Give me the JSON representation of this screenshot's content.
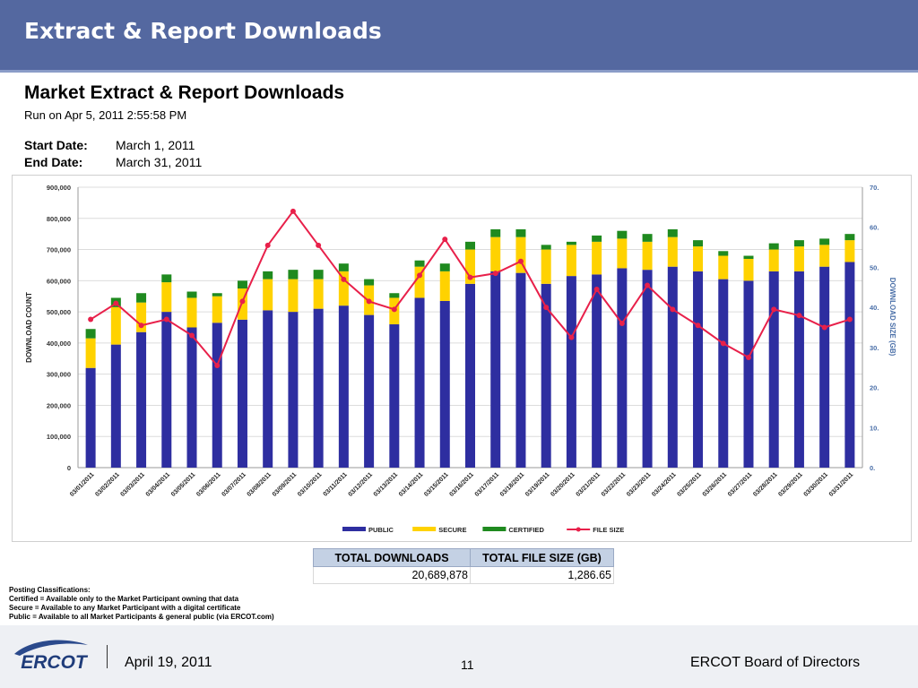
{
  "header": {
    "title": "Extract & Report Downloads"
  },
  "report": {
    "title": "Market Extract & Report Downloads",
    "run_on": "Run on Apr 5, 2011  2:55:58 PM",
    "start_label": "Start Date:",
    "start_value": "March 1, 2011",
    "end_label": "End Date:",
    "end_value": "March 31, 2011"
  },
  "chart_data": {
    "type": "bar",
    "stacked": true,
    "categories": [
      "03/01/2011",
      "03/02/2011",
      "03/03/2011",
      "03/04/2011",
      "03/05/2011",
      "03/06/2011",
      "03/07/2011",
      "03/08/2011",
      "03/09/2011",
      "03/10/2011",
      "03/11/2011",
      "03/12/2011",
      "03/13/2011",
      "03/14/2011",
      "03/15/2011",
      "03/16/2011",
      "03/17/2011",
      "03/18/2011",
      "03/19/2011",
      "03/20/2011",
      "03/21/2011",
      "03/22/2011",
      "03/23/2011",
      "03/24/2011",
      "03/25/2011",
      "03/26/2011",
      "03/27/2011",
      "03/28/2011",
      "03/29/2011",
      "03/30/2011",
      "03/31/2011"
    ],
    "series": [
      {
        "name": "PUBLIC",
        "color": "#2e2ea0",
        "values": [
          320000,
          395000,
          435000,
          500000,
          450000,
          465000,
          475000,
          505000,
          500000,
          510000,
          520000,
          490000,
          460000,
          545000,
          535000,
          590000,
          630000,
          625000,
          590000,
          615000,
          620000,
          640000,
          635000,
          645000,
          630000,
          605000,
          600000,
          630000,
          630000,
          645000,
          660000
        ]
      },
      {
        "name": "SECURE",
        "color": "#ffd200",
        "values": [
          95000,
          120000,
          95000,
          95000,
          95000,
          85000,
          100000,
          100000,
          105000,
          95000,
          110000,
          95000,
          85000,
          100000,
          95000,
          110000,
          110000,
          115000,
          110000,
          100000,
          105000,
          95000,
          90000,
          95000,
          80000,
          75000,
          70000,
          70000,
          80000,
          70000,
          70000
        ]
      },
      {
        "name": "CERTIFIED",
        "color": "#1f8a1f",
        "values": [
          30000,
          30000,
          30000,
          25000,
          20000,
          10000,
          25000,
          25000,
          30000,
          30000,
          25000,
          20000,
          15000,
          20000,
          25000,
          25000,
          25000,
          25000,
          15000,
          10000,
          20000,
          25000,
          25000,
          25000,
          20000,
          15000,
          10000,
          20000,
          20000,
          20000,
          20000
        ]
      },
      {
        "name": "FILE SIZE",
        "color": "#e8204a",
        "axis": "right",
        "values": [
          37,
          41,
          35.5,
          37,
          33,
          25.5,
          41.5,
          55.5,
          64,
          55.5,
          47,
          41.5,
          39.5,
          48,
          57,
          47.5,
          48.5,
          51.5,
          40,
          32.5,
          44.5,
          36,
          45.5,
          39.5,
          35.5,
          31,
          27.5,
          39.5,
          38,
          35,
          37
        ]
      }
    ],
    "ylabel": "DOWNLOAD COUNT",
    "y2label": "DOWNLOAD SIZE (GB)",
    "ylim": [
      0,
      900000
    ],
    "y2lim": [
      0,
      70
    ],
    "yticks": [
      "0",
      "100,000",
      "200,000",
      "300,000",
      "400,000",
      "500,000",
      "600,000",
      "700,000",
      "800,000",
      "900,000"
    ],
    "y2ticks": [
      "0.",
      "10.",
      "20.",
      "30.",
      "40.",
      "50.",
      "60.",
      "70."
    ],
    "grid": true,
    "legend_position": "bottom"
  },
  "totals": {
    "downloads_label": "TOTAL DOWNLOADS",
    "size_label": "TOTAL FILE SIZE (GB)",
    "downloads_value": "20,689,878",
    "size_value": "1,286.65"
  },
  "posting": {
    "title": "Posting Classifications:",
    "certified": "Certified = Available only to the Market Participant owning that data",
    "secure": "Secure = Available to any Market Participant with a digital certificate",
    "public": "Public = Available to all Market Participants & general public (via ERCOT.com)"
  },
  "footer": {
    "logo_text": "ERCOT",
    "date": "April 19, 2011",
    "page": "11",
    "org": "ERCOT Board of Directors"
  },
  "colors": {
    "header": "#5468a0",
    "public": "#2e2ea0",
    "secure": "#ffd200",
    "certified": "#1f8a1f",
    "file_size": "#e8204a",
    "right_axis": "#4a6fa8"
  }
}
